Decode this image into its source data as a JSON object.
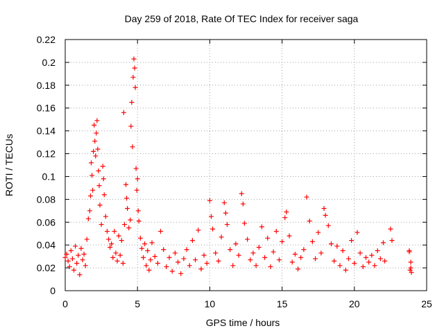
{
  "chart_data": {
    "type": "scatter",
    "title": "Day 259 of 2018, Rate Of TEC Index for receiver saga",
    "xlabel": "GPS time / hours",
    "ylabel": "ROTI / TECUs",
    "xlim": [
      0,
      25
    ],
    "ylim": [
      0,
      0.22
    ],
    "xticks": [
      "0",
      "5",
      "10",
      "15",
      "20",
      "25"
    ],
    "yticks": [
      "0",
      "0.02",
      "0.04",
      "0.06",
      "0.08",
      "0.1",
      "0.12",
      "0.14",
      "0.16",
      "0.18",
      "0.2",
      "0.22"
    ],
    "grid": true,
    "marker": "+",
    "series": [
      {
        "color": "#ff0000",
        "points": [
          [
            0.0,
            0.029
          ],
          [
            0.1,
            0.032
          ],
          [
            0.2,
            0.026
          ],
          [
            0.3,
            0.021
          ],
          [
            0.4,
            0.035
          ],
          [
            0.5,
            0.028
          ],
          [
            0.6,
            0.018
          ],
          [
            0.7,
            0.039
          ],
          [
            0.8,
            0.024
          ],
          [
            0.9,
            0.031
          ],
          [
            1.0,
            0.014
          ],
          [
            1.1,
            0.037
          ],
          [
            1.2,
            0.027
          ],
          [
            1.3,
            0.032
          ],
          [
            1.4,
            0.022
          ],
          [
            1.5,
            0.045
          ],
          [
            1.6,
            0.063
          ],
          [
            1.7,
            0.07
          ],
          [
            1.75,
            0.083
          ],
          [
            1.8,
            0.112
          ],
          [
            1.85,
            0.101
          ],
          [
            1.9,
            0.088
          ],
          [
            1.95,
            0.122
          ],
          [
            2.0,
            0.145
          ],
          [
            2.05,
            0.131
          ],
          [
            2.1,
            0.118
          ],
          [
            2.15,
            0.138
          ],
          [
            2.2,
            0.149
          ],
          [
            2.25,
            0.124
          ],
          [
            2.3,
            0.105
          ],
          [
            2.35,
            0.092
          ],
          [
            2.4,
            0.075
          ],
          [
            2.5,
            0.058
          ],
          [
            2.6,
            0.109
          ],
          [
            2.65,
            0.098
          ],
          [
            2.7,
            0.084
          ],
          [
            2.8,
            0.065
          ],
          [
            2.9,
            0.052
          ],
          [
            3.0,
            0.045
          ],
          [
            3.1,
            0.038
          ],
          [
            3.2,
            0.041
          ],
          [
            3.3,
            0.029
          ],
          [
            3.4,
            0.052
          ],
          [
            3.5,
            0.033
          ],
          [
            3.6,
            0.026
          ],
          [
            3.7,
            0.048
          ],
          [
            3.8,
            0.031
          ],
          [
            3.9,
            0.044
          ],
          [
            4.0,
            0.024
          ],
          [
            4.05,
            0.156
          ],
          [
            4.1,
            0.058
          ],
          [
            4.2,
            0.093
          ],
          [
            4.25,
            0.081
          ],
          [
            4.3,
            0.072
          ],
          [
            4.4,
            0.055
          ],
          [
            4.5,
            0.062
          ],
          [
            4.55,
            0.144
          ],
          [
            4.6,
            0.165
          ],
          [
            4.65,
            0.126
          ],
          [
            4.7,
            0.187
          ],
          [
            4.75,
            0.203
          ],
          [
            4.8,
            0.195
          ],
          [
            4.85,
            0.178
          ],
          [
            4.9,
            0.107
          ],
          [
            4.95,
            0.088
          ],
          [
            5.0,
            0.098
          ],
          [
            5.05,
            0.07
          ],
          [
            5.1,
            0.061
          ],
          [
            5.2,
            0.046
          ],
          [
            5.3,
            0.037
          ],
          [
            5.4,
            0.029
          ],
          [
            5.5,
            0.041
          ],
          [
            5.6,
            0.022
          ],
          [
            5.7,
            0.035
          ],
          [
            5.8,
            0.018
          ],
          [
            5.9,
            0.027
          ],
          [
            6.0,
            0.042
          ],
          [
            6.2,
            0.03
          ],
          [
            6.4,
            0.024
          ],
          [
            6.6,
            0.052
          ],
          [
            6.8,
            0.036
          ],
          [
            7.0,
            0.021
          ],
          [
            7.2,
            0.029
          ],
          [
            7.4,
            0.017
          ],
          [
            7.6,
            0.033
          ],
          [
            7.8,
            0.025
          ],
          [
            8.0,
            0.015
          ],
          [
            8.2,
            0.028
          ],
          [
            8.4,
            0.036
          ],
          [
            8.6,
            0.022
          ],
          [
            8.8,
            0.044
          ],
          [
            9.0,
            0.027
          ],
          [
            9.2,
            0.053
          ],
          [
            9.4,
            0.019
          ],
          [
            9.6,
            0.031
          ],
          [
            9.8,
            0.024
          ],
          [
            10.0,
            0.079
          ],
          [
            10.1,
            0.065
          ],
          [
            10.2,
            0.054
          ],
          [
            10.4,
            0.033
          ],
          [
            10.6,
            0.026
          ],
          [
            10.8,
            0.047
          ],
          [
            11.0,
            0.077
          ],
          [
            11.1,
            0.068
          ],
          [
            11.2,
            0.058
          ],
          [
            11.4,
            0.036
          ],
          [
            11.6,
            0.022
          ],
          [
            11.8,
            0.041
          ],
          [
            12.0,
            0.031
          ],
          [
            12.2,
            0.085
          ],
          [
            12.3,
            0.076
          ],
          [
            12.4,
            0.059
          ],
          [
            12.6,
            0.045
          ],
          [
            12.8,
            0.027
          ],
          [
            13.0,
            0.033
          ],
          [
            13.2,
            0.022
          ],
          [
            13.4,
            0.038
          ],
          [
            13.6,
            0.056
          ],
          [
            13.8,
            0.029
          ],
          [
            14.0,
            0.046
          ],
          [
            14.2,
            0.021
          ],
          [
            14.4,
            0.034
          ],
          [
            14.6,
            0.052
          ],
          [
            14.8,
            0.027
          ],
          [
            15.0,
            0.043
          ],
          [
            15.2,
            0.064
          ],
          [
            15.3,
            0.069
          ],
          [
            15.5,
            0.048
          ],
          [
            15.7,
            0.025
          ],
          [
            15.9,
            0.032
          ],
          [
            16.1,
            0.019
          ],
          [
            16.3,
            0.029
          ],
          [
            16.5,
            0.036
          ],
          [
            16.7,
            0.082
          ],
          [
            16.9,
            0.061
          ],
          [
            17.1,
            0.043
          ],
          [
            17.3,
            0.028
          ],
          [
            17.5,
            0.051
          ],
          [
            17.7,
            0.033
          ],
          [
            17.9,
            0.072
          ],
          [
            18.0,
            0.066
          ],
          [
            18.2,
            0.057
          ],
          [
            18.4,
            0.041
          ],
          [
            18.6,
            0.026
          ],
          [
            18.8,
            0.039
          ],
          [
            19.0,
            0.022
          ],
          [
            19.2,
            0.035
          ],
          [
            19.4,
            0.018
          ],
          [
            19.6,
            0.028
          ],
          [
            19.8,
            0.044
          ],
          [
            20.0,
            0.024
          ],
          [
            20.2,
            0.051
          ],
          [
            20.4,
            0.033
          ],
          [
            20.6,
            0.021
          ],
          [
            20.8,
            0.029
          ],
          [
            21.0,
            0.025
          ],
          [
            21.2,
            0.031
          ],
          [
            21.4,
            0.022
          ],
          [
            21.6,
            0.035
          ],
          [
            21.8,
            0.028
          ],
          [
            22.0,
            0.042
          ],
          [
            22.1,
            0.026
          ],
          [
            22.5,
            0.054
          ],
          [
            22.6,
            0.044
          ],
          [
            23.8,
            0.034
          ],
          [
            23.85,
            0.018
          ],
          [
            23.9,
            0.025
          ],
          [
            23.95,
            0.016
          ],
          [
            23.8,
            0.035
          ],
          [
            23.9,
            0.02
          ]
        ]
      }
    ]
  }
}
